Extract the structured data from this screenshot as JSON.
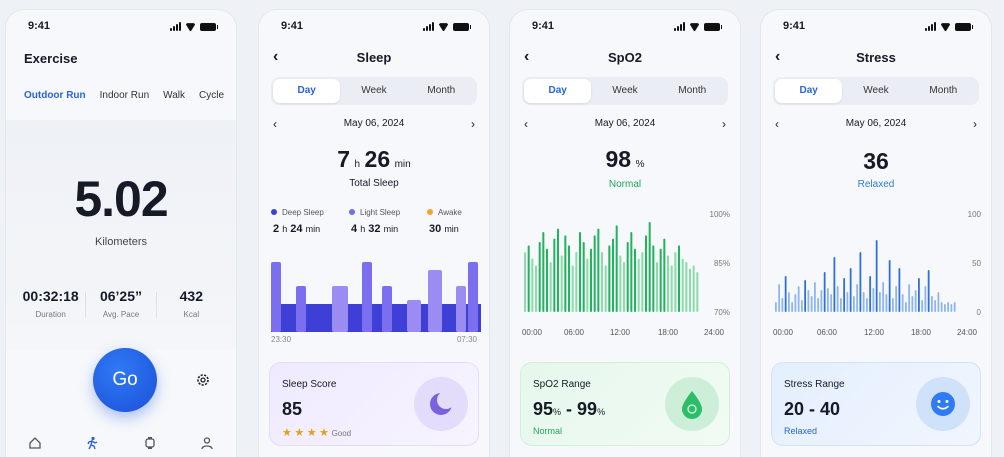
{
  "status": {
    "time": "9:41"
  },
  "exercise": {
    "title": "Exercise",
    "tabs": [
      "Outdoor Run",
      "Indoor Run",
      "Walk",
      "Cycle"
    ],
    "distance": "5.02",
    "distance_unit": "Kilometers",
    "stats": [
      {
        "value": "00:32:18",
        "label": "Duration"
      },
      {
        "value": "06’25”",
        "label": "Avg. Pace"
      },
      {
        "value": "432",
        "label": "Kcal"
      }
    ],
    "go_label": "Go"
  },
  "sleep": {
    "title": "Sleep",
    "tabs": [
      "Day",
      "Week",
      "Month"
    ],
    "date": "May 06, 2024",
    "hours": "7",
    "h_unit": "h",
    "minutes": "26",
    "min_unit": "min",
    "total_label": "Total Sleep",
    "legend": [
      {
        "name": "Deep Sleep",
        "h": "2",
        "m": "24",
        "color": "#3d3fd6"
      },
      {
        "name": "Light Sleep",
        "h": "4",
        "m": "32",
        "color": "#6b6ff0"
      },
      {
        "name": "Awake",
        "h": "",
        "m": "30",
        "color": "#f0a42a"
      }
    ],
    "x_start": "23:30",
    "x_end": "07:30",
    "score_label": "Sleep Score",
    "score_value": "85",
    "score_rating": "Good",
    "stars": 4
  },
  "spo2": {
    "title": "SpO2",
    "tabs": [
      "Day",
      "Week",
      "Month"
    ],
    "date": "May 06, 2024",
    "value": "98",
    "unit": "%",
    "status": "Normal",
    "y_labels": [
      "100%",
      "85%",
      "70%"
    ],
    "x_labels": [
      "00:00",
      "06:00",
      "12:00",
      "18:00",
      "24:00"
    ],
    "range_label": "SpO2 Range",
    "range_low": "95",
    "range_high": "99",
    "range_status": "Normal"
  },
  "stress": {
    "title": "Stress",
    "tabs": [
      "Day",
      "Week",
      "Month"
    ],
    "date": "May 06, 2024",
    "value": "36",
    "status": "Relaxed",
    "y_labels": [
      "100",
      "50",
      "0"
    ],
    "x_labels": [
      "00:00",
      "06:00",
      "12:00",
      "18:00",
      "24:00"
    ],
    "range_label": "Stress Range",
    "range_value": "20 - 40",
    "range_status": "Relaxed"
  },
  "chart_data": [
    {
      "type": "bar",
      "title": "",
      "series": [
        {
          "name": "SpO2",
          "values": [
            88,
            90,
            86,
            84,
            91,
            94,
            89,
            85,
            92,
            95,
            87,
            93,
            90,
            84,
            88,
            94,
            91,
            86,
            89,
            93,
            95,
            88,
            84,
            90,
            92,
            96,
            87,
            85,
            91,
            94,
            89,
            86,
            88,
            93,
            97,
            90,
            85,
            89,
            92,
            87,
            84,
            88,
            90,
            86,
            85,
            83,
            84,
            82
          ]
        }
      ],
      "x_range": [
        "00:00",
        "24:00"
      ],
      "ylim": [
        70,
        100
      ]
    },
    {
      "type": "bar",
      "title": "",
      "series": [
        {
          "name": "Stress",
          "values": [
            10,
            28,
            14,
            36,
            20,
            10,
            18,
            26,
            12,
            32,
            22,
            16,
            30,
            14,
            22,
            40,
            24,
            18,
            55,
            26,
            14,
            34,
            20,
            44,
            16,
            28,
            60,
            20,
            14,
            36,
            24,
            72,
            20,
            30,
            18,
            52,
            14,
            26,
            44,
            18,
            10,
            28,
            16,
            22,
            34,
            12,
            26,
            42,
            16,
            12,
            20,
            10,
            8,
            10,
            8,
            10
          ]
        }
      ],
      "x_range": [
        "00:00",
        "24:00"
      ],
      "ylim": [
        0,
        100
      ]
    }
  ]
}
